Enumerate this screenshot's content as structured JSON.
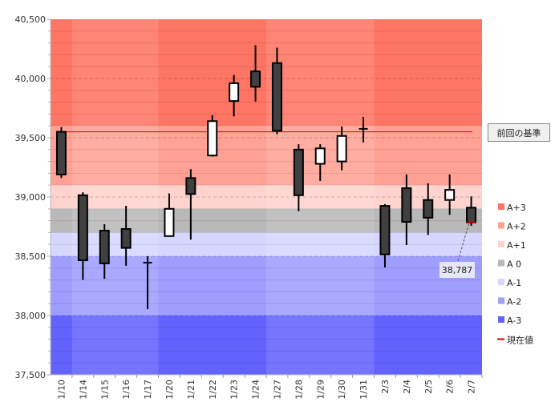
{
  "chart_data": {
    "type": "candlestick",
    "title": "",
    "xlabel": "",
    "ylabel": "",
    "ylim": [
      37500,
      40500
    ],
    "yticks": [
      "37,500",
      "38,000",
      "38,500",
      "39,000",
      "39,500",
      "40,000",
      "40,500"
    ],
    "ytick_values": [
      37500,
      38000,
      38500,
      39000,
      39500,
      40000,
      40500
    ],
    "grid_minor_step": 100,
    "categories": [
      "1/10",
      "1/14",
      "1/15",
      "1/16",
      "1/17",
      "1/20",
      "1/21",
      "1/22",
      "1/23",
      "1/24",
      "1/27",
      "1/28",
      "1/29",
      "1/30",
      "1/31",
      "2/3",
      "2/4",
      "2/5",
      "2/6",
      "2/7"
    ],
    "week_groups": [
      [
        0,
        0
      ],
      [
        1,
        4
      ],
      [
        5,
        9
      ],
      [
        10,
        14
      ],
      [
        15,
        19
      ]
    ],
    "ohlc": [
      [
        39550,
        39590,
        39160,
        39190
      ],
      [
        39015,
        39040,
        38300,
        38466
      ],
      [
        38716,
        38770,
        38310,
        38440
      ],
      [
        38730,
        38926,
        38420,
        38570
      ],
      [
        38446,
        38500,
        38054,
        38446
      ],
      [
        38670,
        39030,
        38670,
        38900
      ],
      [
        39160,
        39235,
        38640,
        39025
      ],
      [
        39350,
        39690,
        39340,
        39640
      ],
      [
        39810,
        40030,
        39680,
        39960
      ],
      [
        40060,
        40280,
        39805,
        39930
      ],
      [
        40130,
        40260,
        39530,
        39560
      ],
      [
        39400,
        39445,
        38880,
        39015
      ],
      [
        39280,
        39445,
        39135,
        39410
      ],
      [
        39300,
        39595,
        39225,
        39515
      ],
      [
        39575,
        39675,
        39460,
        39575
      ],
      [
        38925,
        38940,
        38405,
        38515
      ],
      [
        39075,
        39190,
        38595,
        38790
      ],
      [
        38975,
        39115,
        38680,
        38825
      ],
      [
        38975,
        39190,
        38850,
        39060
      ],
      [
        38910,
        39005,
        38757,
        38785
      ]
    ],
    "bands": [
      {
        "name": "A+3",
        "from": 39600,
        "to": 40500,
        "color": "#ff7563"
      },
      {
        "name": "A+2",
        "from": 39100,
        "to": 39600,
        "color": "#ffa195"
      },
      {
        "name": "A+1",
        "from": 38900,
        "to": 39100,
        "color": "#ffd3ce"
      },
      {
        "name": "A 0",
        "from": 38700,
        "to": 38900,
        "color": "#b9b9b9"
      },
      {
        "name": "A-1",
        "from": 38500,
        "to": 38700,
        "color": "#d6d6ff"
      },
      {
        "name": "A-2",
        "from": 38000,
        "to": 38500,
        "color": "#9e9eff"
      },
      {
        "name": "A-3",
        "from": 37500,
        "to": 38000,
        "color": "#6262ff"
      }
    ],
    "reference_line": {
      "label": "前回の基準",
      "value": 39550,
      "color": "#e00000"
    },
    "current_value": {
      "label": "現在値",
      "value": 38787,
      "display": "38,787",
      "color": "#c00000"
    },
    "legend_placement": "right"
  }
}
